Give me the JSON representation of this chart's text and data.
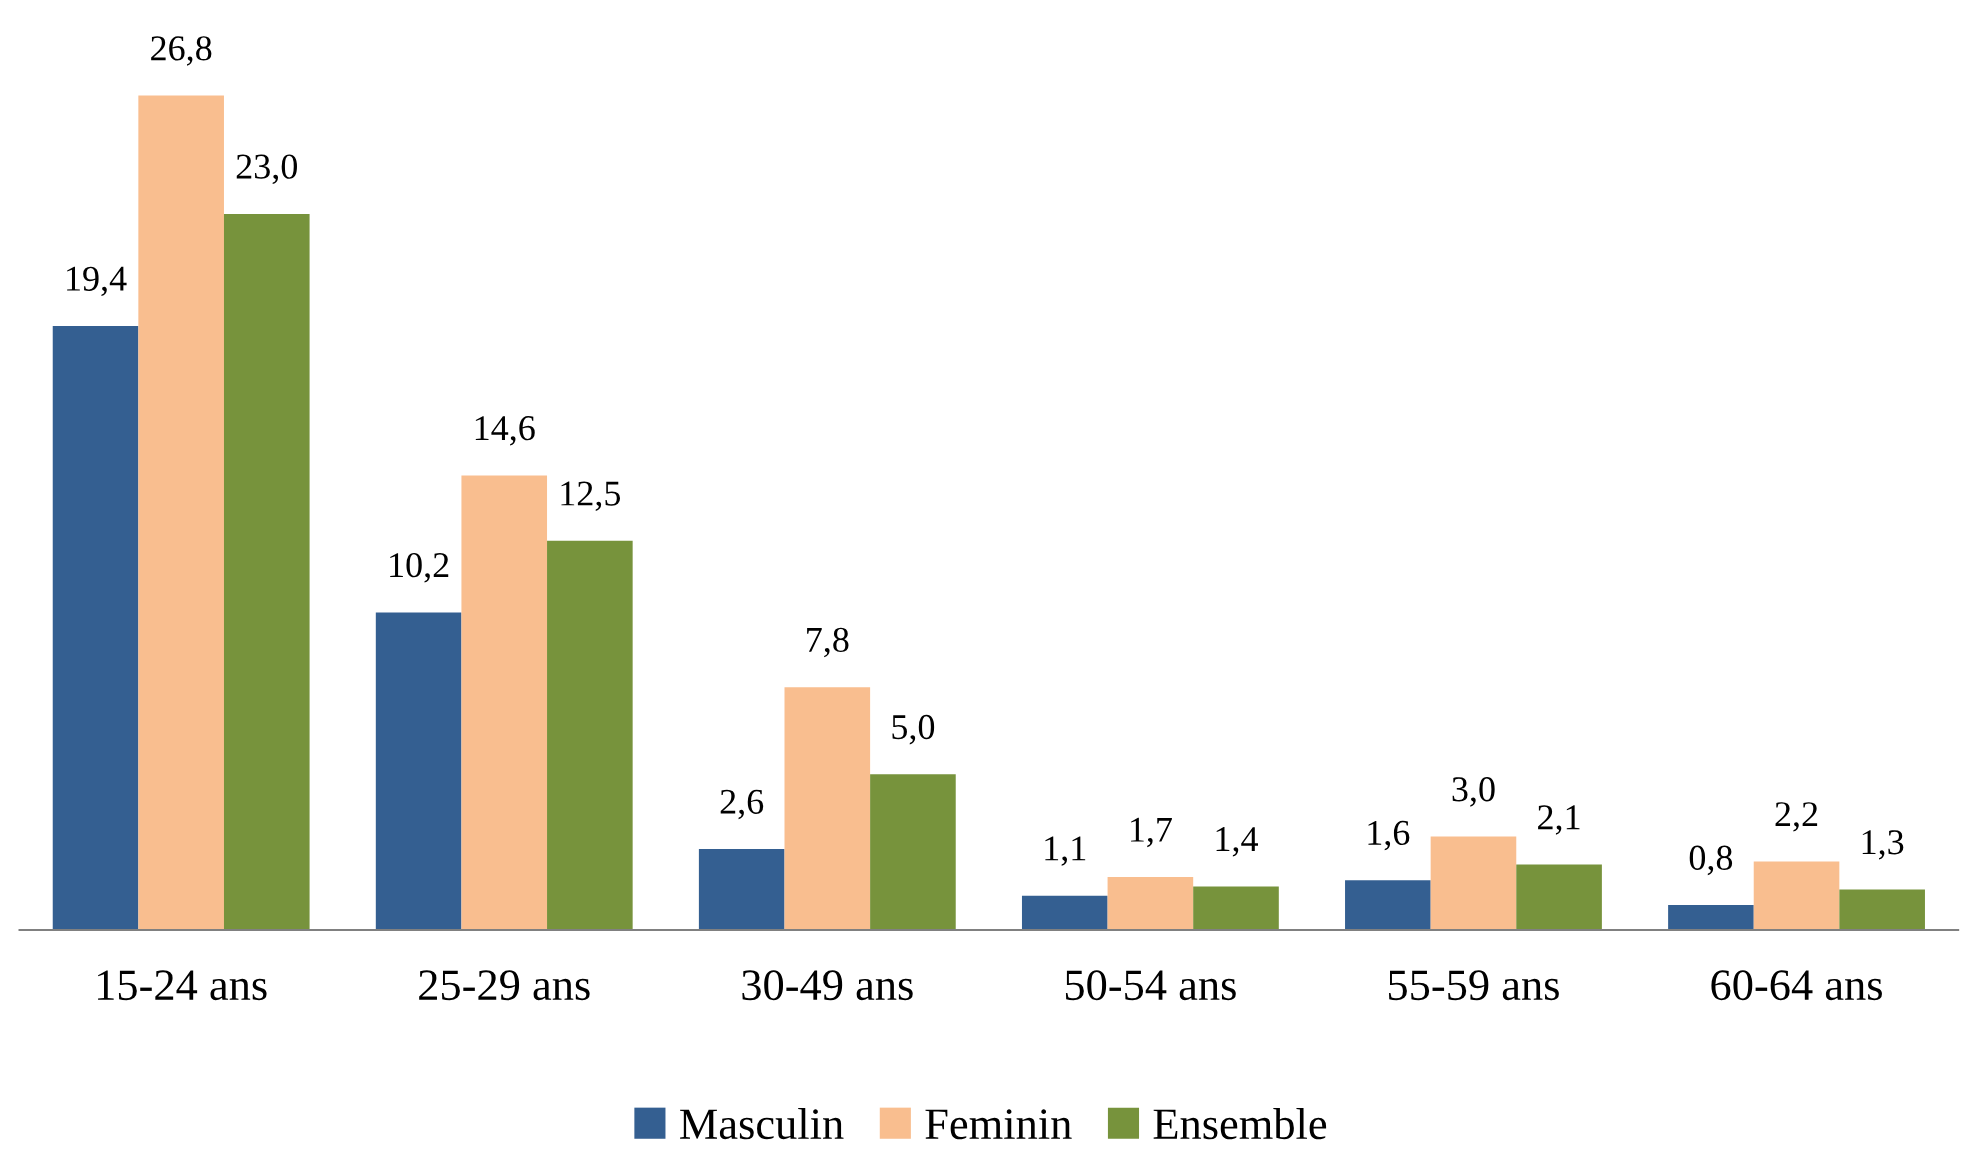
{
  "chart_data": {
    "type": "bar",
    "categories": [
      "15-24 ans",
      "25-29 ans",
      "30-49 ans",
      "50-54 ans",
      "55-59 ans",
      "60-64 ans"
    ],
    "series": [
      {
        "name": "Masculin",
        "color": "#345f91",
        "values": [
          19.4,
          10.2,
          2.6,
          1.1,
          1.6,
          0.8
        ],
        "value_labels": [
          "19,4",
          "10,2",
          "2,6",
          "1,1",
          "1,6",
          "0,8"
        ]
      },
      {
        "name": "Feminin",
        "color": "#f9be8f",
        "values": [
          26.8,
          14.6,
          7.8,
          1.7,
          3.0,
          2.2
        ],
        "value_labels": [
          "26,8",
          "14,6",
          "7,8",
          "1,7",
          "3,0",
          "2,2"
        ]
      },
      {
        "name": "Ensemble",
        "color": "#77933c",
        "values": [
          23.0,
          12.5,
          5.0,
          1.4,
          2.1,
          1.3
        ],
        "value_labels": [
          "23,0",
          "12,5",
          "5,0",
          "1,4",
          "2,1",
          "1,3"
        ]
      }
    ],
    "legend": "bottom",
    "grid": false,
    "tick_labels": "x"
  }
}
